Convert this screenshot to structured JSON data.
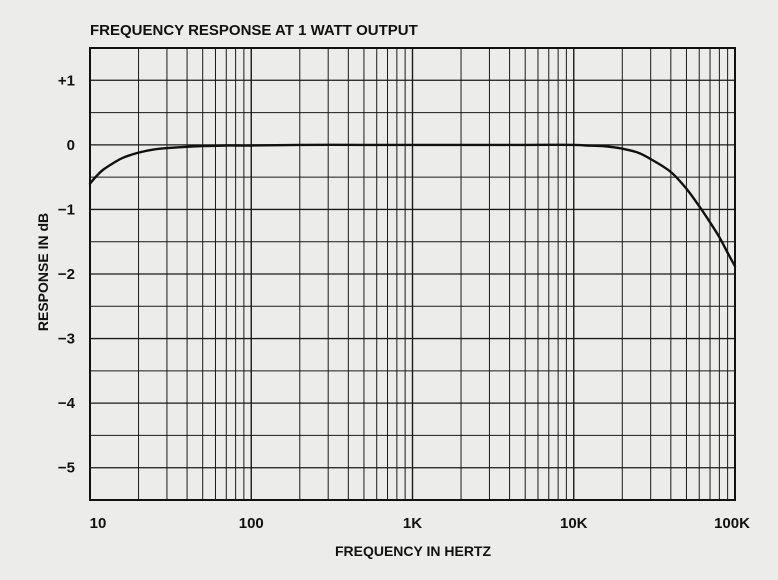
{
  "chart_data": {
    "type": "line",
    "title": "FREQUENCY RESPONSE AT 1 WATT OUTPUT",
    "xlabel": "FREQUENCY IN HERTZ",
    "ylabel": "RESPONSE IN dB",
    "x_scale": "log",
    "xlim": [
      10,
      100000
    ],
    "ylim": [
      -5.5,
      1.5
    ],
    "x_ticks": [
      {
        "value": 10,
        "label": "10"
      },
      {
        "value": 100,
        "label": "100"
      },
      {
        "value": 1000,
        "label": "1K"
      },
      {
        "value": 10000,
        "label": "10K"
      },
      {
        "value": 100000,
        "label": "100K"
      }
    ],
    "y_ticks": [
      {
        "value": 1,
        "label": "+1"
      },
      {
        "value": 0,
        "label": "0"
      },
      {
        "value": -1,
        "label": "−1"
      },
      {
        "value": -2,
        "label": "−2"
      },
      {
        "value": -3,
        "label": "−3"
      },
      {
        "value": -4,
        "label": "−4"
      },
      {
        "value": -5,
        "label": "−5"
      }
    ],
    "grid": true,
    "series": [
      {
        "x": [
          10,
          11,
          12,
          14,
          16,
          20,
          25,
          30,
          40,
          50,
          70,
          100,
          200,
          500,
          1000,
          5000,
          10000,
          12000,
          15000,
          18000,
          20000,
          25000,
          30000,
          40000,
          50000,
          60000,
          70000,
          80000,
          90000,
          100000
        ],
        "y": [
          -0.6,
          -0.48,
          -0.39,
          -0.28,
          -0.2,
          -0.12,
          -0.07,
          -0.05,
          -0.03,
          -0.02,
          -0.01,
          -0.01,
          0,
          0,
          0,
          0,
          0,
          -0.01,
          -0.02,
          -0.04,
          -0.06,
          -0.12,
          -0.22,
          -0.42,
          -0.68,
          -0.95,
          -1.2,
          -1.43,
          -1.67,
          -1.88
        ]
      }
    ]
  }
}
